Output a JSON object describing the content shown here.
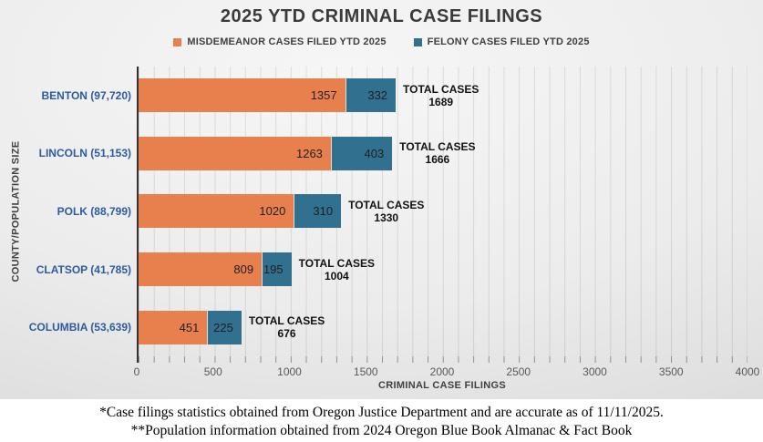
{
  "title": "2025 YTD CRIMINAL CASE FILINGS",
  "chart_data": {
    "type": "bar",
    "orientation": "horizontal",
    "stacked": true,
    "title": "2025 YTD CRIMINAL CASE FILINGS",
    "xlabel": "CRIMINAL CASE FILINGS",
    "ylabel": "COUNTY/POPULATION SIZE",
    "xlim": [
      0,
      4000
    ],
    "minor_grid_interval": 100,
    "xticks": [
      "0",
      "500",
      "1000",
      "1500",
      "2000",
      "2500",
      "3000",
      "3500",
      "4000"
    ],
    "legend_position": "top",
    "grid": "vertical-minor",
    "total_caption": "TOTAL CASES",
    "categories": [
      "BENTON (97,720)",
      "LINCOLN (51,153)",
      "POLK (88,799)",
      "CLATSOP (41,785)",
      "COLUMBIA (53,639)"
    ],
    "series": [
      {
        "name": "MISDEMEANOR CASES FILED YTD 2025",
        "color": "#E8804E",
        "values": [
          1357,
          1263,
          1020,
          809,
          451
        ]
      },
      {
        "name": "FELONY CASES FILED YTD 2025",
        "color": "#31708F",
        "values": [
          332,
          403,
          310,
          195,
          225
        ]
      }
    ],
    "totals": [
      1689,
      1666,
      1330,
      1004,
      676
    ],
    "rows": [
      {
        "label": "BENTON (97,720)",
        "misdemeanor": 1357,
        "felony": 332,
        "total": 1689
      },
      {
        "label": "LINCOLN (51,153)",
        "misdemeanor": 1263,
        "felony": 403,
        "total": 1666
      },
      {
        "label": "POLK (88,799)",
        "misdemeanor": 1020,
        "felony": 310,
        "total": 1330
      },
      {
        "label": "CLATSOP (41,785)",
        "misdemeanor": 809,
        "felony": 195,
        "total": 1004
      },
      {
        "label": "COLUMBIA (53,639)",
        "misdemeanor": 451,
        "felony": 225,
        "total": 676
      }
    ],
    "colors": {
      "misdemeanor": "#E8804E",
      "felony": "#31708F",
      "county_label_text": "#2E5B9E",
      "title_text": "#3B3B3B",
      "tick_label_text": "#595959",
      "background_center": "#F6F6F6",
      "background_edge": "#D2D2D2",
      "footer_background": "#FFFFFF"
    }
  },
  "footer": {
    "line1": "*Case filings statistics obtained from Oregon Justice Department and are accurate as of 11/11/2025.",
    "line2": "**Population information obtained from 2024 Oregon Blue Book Almanac & Fact Book"
  }
}
